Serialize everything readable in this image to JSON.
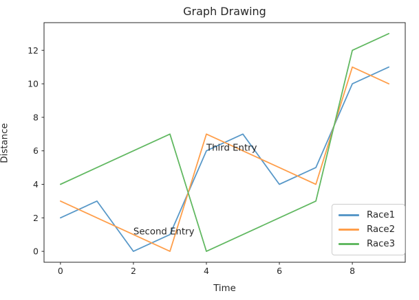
{
  "chart_data": {
    "type": "line",
    "title": "Graph Drawing",
    "xlabel": "Time",
    "ylabel": "Distance",
    "x": [
      0,
      1,
      2,
      3,
      4,
      5,
      6,
      7,
      8,
      9
    ],
    "series": [
      {
        "name": "Race1",
        "color": "#5898c8",
        "values": [
          2,
          3,
          0,
          1,
          6,
          7,
          4,
          5,
          10,
          11
        ]
      },
      {
        "name": "Race2",
        "color": "#ff9e4a",
        "values": [
          3,
          2,
          1,
          0,
          7,
          6,
          5,
          4,
          11,
          10
        ]
      },
      {
        "name": "Race3",
        "color": "#61b861",
        "values": [
          4,
          5,
          6,
          7,
          0,
          1,
          2,
          3,
          12,
          13
        ]
      }
    ],
    "xlim": [
      -0.45,
      9.45
    ],
    "ylim": [
      -0.65,
      13.65
    ],
    "xticks": [
      0,
      2,
      4,
      6,
      8
    ],
    "yticks": [
      0,
      2,
      4,
      6,
      8,
      10,
      12
    ],
    "annotations": [
      {
        "text": "Second Entry",
        "x": 2,
        "y": 1
      },
      {
        "text": "Third Entry",
        "x": 4,
        "y": 6
      }
    ],
    "legend": {
      "position": "lower right"
    },
    "grid": false,
    "axis_color": "#262626",
    "legend_border_color": "#cccccc"
  }
}
